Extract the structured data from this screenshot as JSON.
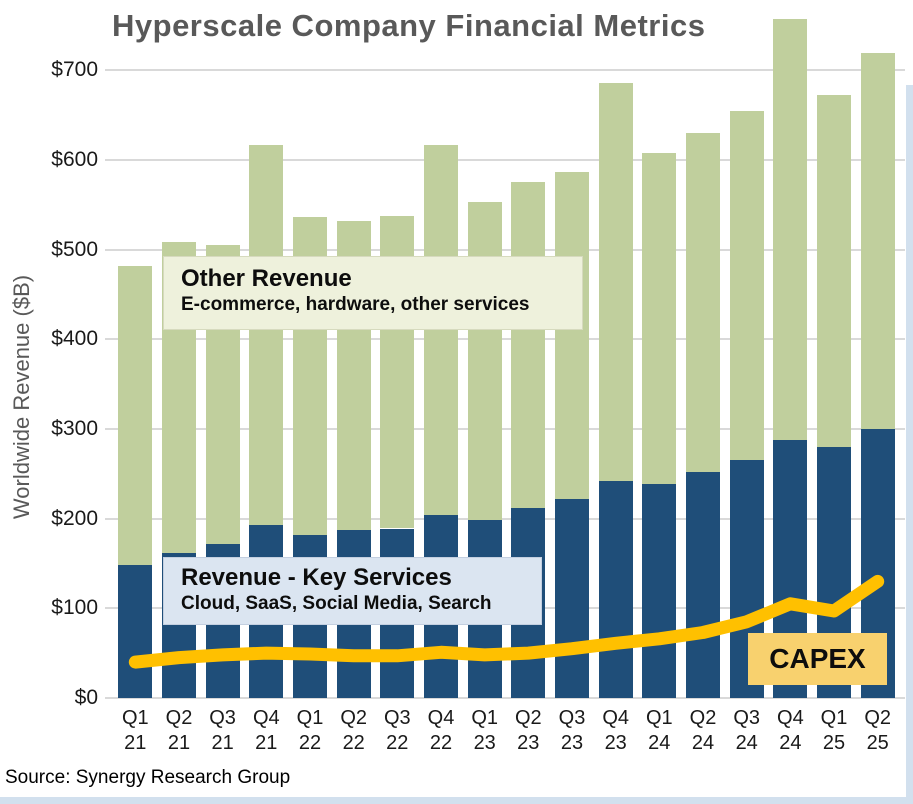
{
  "title": "Hyperscale Company Financial Metrics",
  "source": "Source: Synergy Research Group",
  "y_axis": {
    "label": "Worldwide Revenue ($B)",
    "tick_labels": [
      "$0",
      "$100",
      "$200",
      "$300",
      "$400",
      "$500",
      "$600",
      "$700"
    ]
  },
  "legend": {
    "other_revenue": {
      "title": "Other Revenue",
      "subtitle": "E-commerce, hardware, other services"
    },
    "key_services": {
      "title": "Revenue - Key Services",
      "subtitle": "Cloud, SaaS, Social Media, Search"
    },
    "capex": {
      "label": "CAPEX"
    }
  },
  "colors": {
    "key_services_bar": "#1F4E79",
    "other_revenue_bar": "#C0CF9D",
    "capex_line": "#FFC000",
    "capex_box_bg": "#F8D16E",
    "title_text": "#595959",
    "gridline": "#D9D9D9"
  },
  "chart_data": {
    "type": "bar",
    "stacked": true,
    "title": "Hyperscale Company Financial Metrics",
    "ylabel": "Worldwide Revenue ($B)",
    "xlabel": "",
    "ylim": [
      0,
      778
    ],
    "yticks": [
      0,
      100,
      200,
      300,
      400,
      500,
      600,
      700
    ],
    "grid": true,
    "categories": [
      "Q1 21",
      "Q2 21",
      "Q3 21",
      "Q4 21",
      "Q1 22",
      "Q2 22",
      "Q3 22",
      "Q4 22",
      "Q1 23",
      "Q2 23",
      "Q3 23",
      "Q4 23",
      "Q1 24",
      "Q2 24",
      "Q3 24",
      "Q4 24",
      "Q1 25",
      "Q2 25"
    ],
    "series": [
      {
        "name": "Revenue - Key Services",
        "description": "Cloud, SaaS, Social Media, Search",
        "color": "#1F4E79",
        "values": [
          148,
          162,
          172,
          193,
          182,
          187,
          189,
          204,
          198,
          212,
          222,
          242,
          239,
          252,
          265,
          288,
          280,
          300
        ]
      },
      {
        "name": "Other Revenue",
        "description": "E-commerce, hardware, other services",
        "color": "#C0CF9D",
        "values": [
          334,
          346,
          333,
          424,
          354,
          345,
          348,
          413,
          355,
          363,
          365,
          444,
          369,
          378,
          389,
          469,
          392,
          419
        ]
      }
    ],
    "totals": [
      482,
      508,
      505,
      617,
      536,
      532,
      537,
      617,
      553,
      575,
      587,
      686,
      608,
      630,
      654,
      757,
      672,
      719
    ],
    "line_series": {
      "name": "CAPEX",
      "color": "#FFC000",
      "values": [
        40,
        45,
        48,
        50,
        49,
        47,
        47,
        51,
        48,
        50,
        55,
        61,
        66,
        73,
        85,
        105,
        97,
        130
      ]
    },
    "legend_position": "annotated-boxes-on-plot"
  }
}
